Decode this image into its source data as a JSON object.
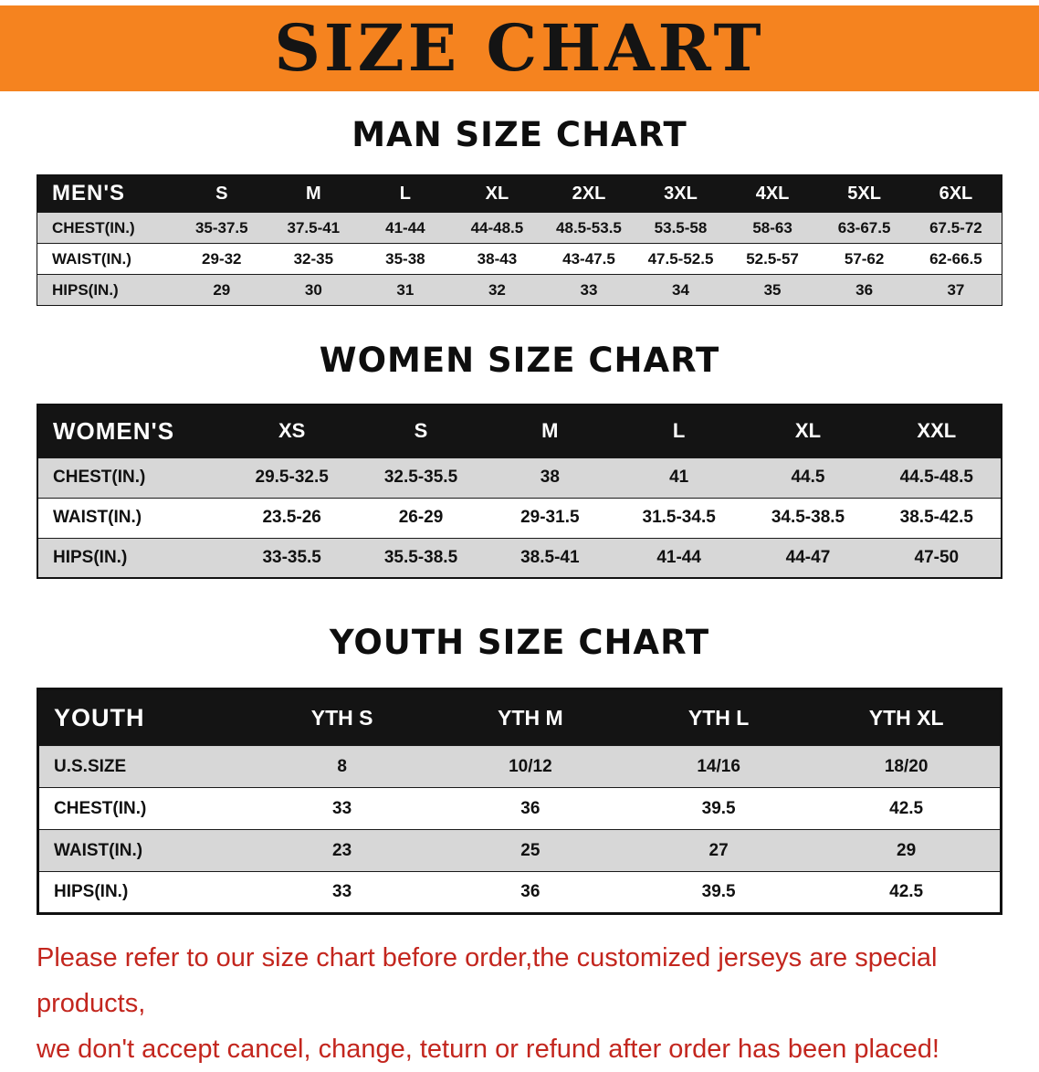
{
  "banner": {
    "title": "SIZE CHART",
    "bg_color": "#F5831F",
    "text_color": "#141414"
  },
  "sections": [
    {
      "heading": "MAN SIZE CHART",
      "table": {
        "title": "MEN'S",
        "columns": [
          "S",
          "M",
          "L",
          "XL",
          "2XL",
          "3XL",
          "4XL",
          "5XL",
          "6XL"
        ],
        "rows": [
          {
            "label": "CHEST(IN.)",
            "values": [
              "35-37.5",
              "37.5-41",
              "41-44",
              "44-48.5",
              "48.5-53.5",
              "53.5-58",
              "58-63",
              "63-67.5",
              "67.5-72"
            ]
          },
          {
            "label": "WAIST(IN.)",
            "values": [
              "29-32",
              "32-35",
              "35-38",
              "38-43",
              "43-47.5",
              "47.5-52.5",
              "52.5-57",
              "57-62",
              "62-66.5"
            ]
          },
          {
            "label": "HIPS(IN.)",
            "values": [
              "29",
              "30",
              "31",
              "32",
              "33",
              "34",
              "35",
              "36",
              "37"
            ]
          }
        ]
      }
    },
    {
      "heading": "WOMEN SIZE CHART",
      "table": {
        "title": "WOMEN'S",
        "columns": [
          "XS",
          "S",
          "M",
          "L",
          "XL",
          "XXL"
        ],
        "rows": [
          {
            "label": "CHEST(IN.)",
            "values": [
              "29.5-32.5",
              "32.5-35.5",
              "38",
              "41",
              "44.5",
              "44.5-48.5"
            ]
          },
          {
            "label": "WAIST(IN.)",
            "values": [
              "23.5-26",
              "26-29",
              "29-31.5",
              "31.5-34.5",
              "34.5-38.5",
              "38.5-42.5"
            ]
          },
          {
            "label": "HIPS(IN.)",
            "values": [
              "33-35.5",
              "35.5-38.5",
              "38.5-41",
              "41-44",
              "44-47",
              "47-50"
            ]
          }
        ]
      }
    },
    {
      "heading": "YOUTH SIZE CHART",
      "table": {
        "title": "YOUTH",
        "columns": [
          "YTH S",
          "YTH M",
          "YTH L",
          "YTH XL"
        ],
        "rows": [
          {
            "label": "U.S.SIZE",
            "values": [
              "8",
              "10/12",
              "14/16",
              "18/20"
            ]
          },
          {
            "label": "CHEST(IN.)",
            "values": [
              "33",
              "36",
              "39.5",
              "42.5"
            ]
          },
          {
            "label": "WAIST(IN.)",
            "values": [
              "23",
              "25",
              "27",
              "29"
            ]
          },
          {
            "label": "HIPS(IN.)",
            "values": [
              "33",
              "36",
              "39.5",
              "42.5"
            ]
          }
        ]
      }
    }
  ],
  "disclaimer": {
    "line1": "Please refer to our size chart before order,the customized jerseys are special products,",
    "line2": "we don't accept cancel, change, teturn or refund after order has been placed!",
    "color": "#C3261E"
  }
}
